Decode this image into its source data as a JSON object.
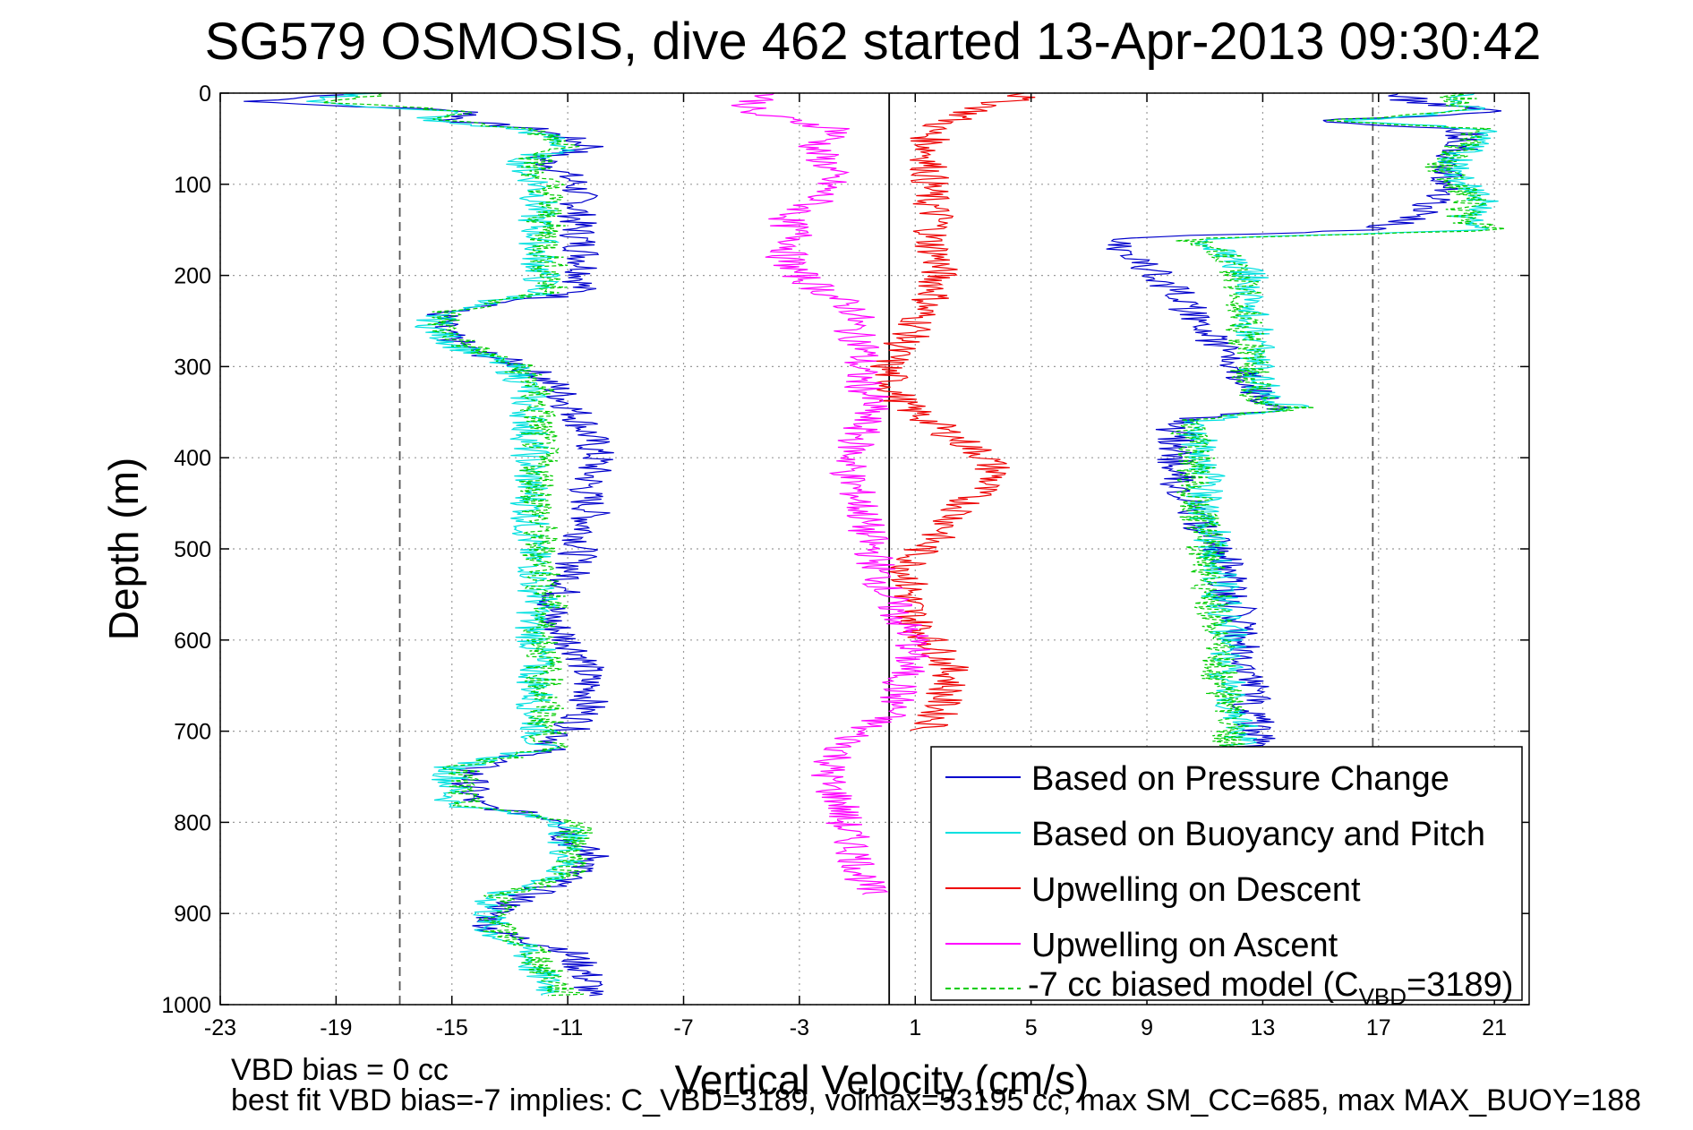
{
  "chart_data": {
    "type": "line",
    "title": "SG579 OSMOSIS, dive 462 started 13-Apr-2013 09:30:42",
    "xlabel": "Vertical Velocity (cm/s)",
    "ylabel": "Depth (m)",
    "xlim": [
      -23,
      22.2
    ],
    "ylim": [
      0,
      1000
    ],
    "y_reversed": true,
    "grid": true,
    "xticks": [
      -23,
      -19,
      -15,
      -11,
      -7,
      -3,
      1,
      5,
      9,
      13,
      17,
      21
    ],
    "xtick_labels": [
      "-23",
      "-19",
      "-15",
      "-11",
      "-7",
      "-3",
      "1",
      "5",
      "9",
      "13",
      "17",
      "21"
    ],
    "yticks": [
      0,
      100,
      200,
      300,
      400,
      500,
      600,
      700,
      800,
      900,
      1000
    ],
    "ytick_labels": [
      "0",
      "100",
      "200",
      "300",
      "400",
      "500",
      "600",
      "700",
      "800",
      "900",
      "1000"
    ],
    "reference_lines": [
      {
        "x": -16.8,
        "style": "dashed",
        "color": "#555555"
      },
      {
        "x": 16.8,
        "style": "dashed",
        "color": "#555555"
      },
      {
        "x": 0.1,
        "style": "solid",
        "color": "#000000"
      }
    ],
    "legend_position": "lower-right",
    "series": [
      {
        "name": "Based on Pressure Change",
        "color": "#0000cc",
        "style": "solid",
        "depth": [
          0,
          10,
          20,
          30,
          40,
          50,
          60,
          70,
          80,
          100,
          120,
          140,
          160,
          180,
          200,
          220,
          240,
          260,
          280,
          300,
          320,
          340,
          360,
          380,
          400,
          420,
          440,
          460,
          480,
          500,
          520,
          540,
          560,
          580,
          600,
          620,
          640,
          660,
          680,
          700,
          720,
          740,
          760,
          780,
          800,
          820,
          840,
          860,
          880,
          900,
          920,
          940,
          960,
          980,
          990
        ],
        "velocity": [
          -18,
          -22,
          -14,
          -15,
          -12,
          -11,
          -10,
          -12,
          -11.5,
          -10.7,
          -10.6,
          -10.7,
          -10.6,
          -10.4,
          -10.4,
          -10.7,
          -15.3,
          -15.5,
          -14.5,
          -12.5,
          -11.5,
          -11,
          -10.5,
          -10.2,
          -10,
          -10.2,
          -10.4,
          -10.2,
          -10.4,
          -10.6,
          -10.8,
          -11,
          -11.5,
          -11.6,
          -11,
          -10.4,
          -10.4,
          -10.2,
          -10.4,
          -11,
          -11.7,
          -14.3,
          -14.4,
          -14.3,
          -10.8,
          -11,
          -10,
          -11,
          -12.4,
          -13.6,
          -13.6,
          -11,
          -10.5,
          -10.2,
          -10.5
        ]
      },
      {
        "name": "Based on Buoyancy and Pitch",
        "color": "#00e0e0",
        "style": "solid",
        "depth": [
          0,
          10,
          20,
          30,
          40,
          50,
          60,
          70,
          80,
          100,
          120,
          140,
          160,
          180,
          200,
          220,
          240,
          260,
          280,
          300,
          320,
          340,
          360,
          380,
          400,
          420,
          440,
          460,
          480,
          500,
          520,
          540,
          560,
          580,
          600,
          620,
          640,
          660,
          680,
          700,
          720,
          740,
          760,
          780,
          800,
          820,
          840,
          860,
          880,
          900,
          920,
          940,
          960,
          980,
          990
        ],
        "velocity": [
          -18,
          -20,
          -15,
          -16,
          -12.5,
          -11.5,
          -11,
          -12.3,
          -12.5,
          -12,
          -12,
          -12.1,
          -12,
          -12,
          -11.9,
          -12,
          -15.5,
          -15.6,
          -14.6,
          -13,
          -12.4,
          -12.4,
          -12.3,
          -12.3,
          -12.3,
          -12.3,
          -12.3,
          -12.3,
          -12.3,
          -12.3,
          -12.1,
          -12.1,
          -11.9,
          -12.3,
          -12.1,
          -12.1,
          -12.1,
          -12.1,
          -12.1,
          -12,
          -12,
          -15,
          -15,
          -15,
          -11,
          -11,
          -11,
          -11.3,
          -13.6,
          -13.7,
          -13.7,
          -12.4,
          -12.2,
          -11.6,
          -11.4
        ]
      },
      {
        "name": "Upwelling on Descent",
        "color": "#ee0000",
        "style": "solid",
        "depth": [
          0,
          20,
          40,
          60,
          80,
          100,
          120,
          140,
          160,
          180,
          200,
          220,
          240,
          260,
          280,
          300,
          320,
          340,
          360,
          380,
          400,
          420,
          440,
          460,
          480,
          500,
          520,
          540,
          560,
          580,
          600,
          620,
          640,
          660,
          680,
          700
        ],
        "velocity": [
          5,
          3,
          1.5,
          1.5,
          1.5,
          1.5,
          1.5,
          1.8,
          1.5,
          1.8,
          1.8,
          1.7,
          1.2,
          1,
          0.4,
          0,
          0.2,
          0.5,
          1.5,
          2.5,
          3.5,
          3.8,
          3,
          2.5,
          2,
          1.2,
          0.8,
          0.8,
          0.8,
          1,
          1.5,
          2,
          2.3,
          2,
          1.8,
          1.5
        ]
      },
      {
        "name": "Upwelling on Ascent",
        "color": "#ff00ff",
        "style": "solid",
        "depth": [
          0,
          20,
          40,
          60,
          80,
          100,
          120,
          140,
          160,
          180,
          200,
          220,
          240,
          260,
          280,
          300,
          320,
          340,
          360,
          380,
          400,
          420,
          440,
          460,
          480,
          500,
          520,
          540,
          560,
          580,
          600,
          620,
          640,
          660,
          680,
          700,
          720,
          740,
          760,
          780,
          800,
          820,
          840,
          860,
          880
        ],
        "velocity": [
          -4,
          -5,
          -1.5,
          -2.5,
          -2,
          -2,
          -2.5,
          -3.5,
          -3,
          -3.5,
          -3,
          -2,
          -1,
          -1.2,
          -0.7,
          -1,
          -0.8,
          -0.5,
          -0.8,
          -1,
          -1.2,
          -1.3,
          -1,
          -0.8,
          -0.7,
          -0.5,
          -0.3,
          -0.1,
          0.2,
          0.5,
          1,
          0.8,
          0.6,
          0.4,
          0.2,
          -1,
          -1.5,
          -2,
          -2,
          -1.5,
          -1.5,
          -1.2,
          -1,
          -0.8,
          -0.6
        ]
      },
      {
        "name": "-7 cc biased model (C_VBD=3189)",
        "color": "#00cc00",
        "style": "dashed",
        "depth": [
          0,
          10,
          20,
          30,
          40,
          50,
          60,
          70,
          80,
          100,
          120,
          140,
          160,
          180,
          200,
          220,
          240,
          260,
          280,
          300,
          320,
          340,
          360,
          380,
          400,
          420,
          440,
          460,
          480,
          500,
          520,
          540,
          560,
          580,
          600,
          620,
          640,
          660,
          680,
          700,
          720,
          740,
          760,
          780,
          800,
          820,
          840,
          860,
          880,
          900,
          920,
          940,
          960,
          980,
          990
        ],
        "velocity": [
          -17,
          -19,
          -14.5,
          -15.5,
          -12.3,
          -11.3,
          -10.8,
          -12,
          -12.2,
          -11.7,
          -11.7,
          -11.8,
          -11.7,
          -11.7,
          -11.6,
          -11.7,
          -15.2,
          -15.3,
          -14.3,
          -12.7,
          -12.1,
          -12.1,
          -12,
          -12,
          -12,
          -12,
          -12,
          -12,
          -12,
          -12,
          -11.8,
          -11.8,
          -11.6,
          -12,
          -11.8,
          -11.8,
          -11.8,
          -11.8,
          -11.8,
          -11.7,
          -11.7,
          -14.7,
          -14.7,
          -14.7,
          -10.7,
          -10.7,
          -10.7,
          -11,
          -13.3,
          -13.4,
          -13.4,
          -12.1,
          -11.9,
          -11.3,
          -11.1
        ]
      }
    ],
    "ascent_series": [
      {
        "color": "#0000cc",
        "style": "solid",
        "depth": [
          990,
          980,
          960,
          940,
          920,
          900,
          880,
          860,
          840,
          820,
          800,
          780,
          760,
          740,
          720,
          700,
          680,
          660,
          640,
          620,
          600,
          580,
          560,
          540,
          520,
          500,
          480,
          460,
          440,
          420,
          400,
          380,
          360,
          345,
          340,
          320,
          300,
          280,
          260,
          240,
          220,
          200,
          180,
          160,
          150,
          140,
          120,
          100,
          80,
          60,
          40,
          30,
          20,
          10,
          0
        ],
        "velocity": [
          12,
          13,
          12,
          12.5,
          12.5,
          12.5,
          12.5,
          12.6,
          12.7,
          12.6,
          12.6,
          12.6,
          12.7,
          12.7,
          12.8,
          12.8,
          12.6,
          12.7,
          12.6,
          12.4,
          12.3,
          12.3,
          12.0,
          11.8,
          11.7,
          11.5,
          11.0,
          10.5,
          10.3,
          10.0,
          10.0,
          10.0,
          10.0,
          14.0,
          13.0,
          12.5,
          12.0,
          11.5,
          11.0,
          10.5,
          10.0,
          9.5,
          8.5,
          7.5,
          16.5,
          18,
          19,
          19.5,
          19,
          20,
          20,
          15,
          22,
          18,
          18
        ]
      },
      {
        "color": "#00e0e0",
        "style": "solid",
        "depth": [
          990,
          980,
          960,
          940,
          920,
          900,
          880,
          860,
          840,
          820,
          800,
          780,
          760,
          740,
          720,
          700,
          680,
          660,
          640,
          620,
          600,
          580,
          560,
          540,
          520,
          500,
          480,
          460,
          440,
          420,
          400,
          380,
          360,
          345,
          340,
          320,
          300,
          280,
          260,
          240,
          220,
          200,
          180,
          160,
          150,
          140,
          120,
          100,
          80,
          60,
          40,
          30,
          20,
          10,
          0
        ],
        "velocity": [
          12,
          12.5,
          12.3,
          12.3,
          12.2,
          12.2,
          12.2,
          12.2,
          12.2,
          12.2,
          12.2,
          12.2,
          12.2,
          12.2,
          12.2,
          12.2,
          12.0,
          12.0,
          11.8,
          11.8,
          11.8,
          11.8,
          11.6,
          11.5,
          11.4,
          11.3,
          11.2,
          11.1,
          11.0,
          11.0,
          11.0,
          10.8,
          10.8,
          14.5,
          13.2,
          13.0,
          12.8,
          12.8,
          12.7,
          12.6,
          12.6,
          12.5,
          12.0,
          10.8,
          21,
          20,
          20.5,
          20,
          19.5,
          20,
          21,
          16,
          20,
          20,
          20
        ]
      },
      {
        "color": "#00cc00",
        "style": "dashed",
        "depth": [
          990,
          980,
          960,
          940,
          920,
          900,
          880,
          860,
          840,
          820,
          800,
          780,
          760,
          740,
          720,
          700,
          680,
          660,
          640,
          620,
          600,
          580,
          560,
          540,
          520,
          500,
          480,
          460,
          440,
          420,
          400,
          380,
          360,
          345,
          340,
          320,
          300,
          280,
          260,
          240,
          220,
          200,
          180,
          160,
          150,
          140,
          120,
          100,
          80,
          60,
          40,
          30,
          20,
          10,
          0
        ],
        "velocity": [
          11.8,
          12.2,
          12.0,
          12.0,
          11.9,
          11.9,
          11.9,
          11.9,
          11.9,
          11.9,
          11.9,
          11.9,
          11.9,
          11.9,
          11.9,
          11.9,
          11.7,
          11.7,
          11.5,
          11.5,
          11.5,
          11.5,
          11.3,
          11.2,
          11.1,
          11.0,
          10.9,
          10.8,
          10.7,
          10.7,
          10.7,
          10.5,
          10.5,
          14.2,
          12.9,
          12.7,
          12.5,
          12.5,
          12.4,
          12.3,
          12.3,
          12.2,
          11.7,
          10.5,
          21.5,
          19.7,
          20.2,
          19.7,
          19.2,
          19.7,
          20.7,
          15.7,
          19.7,
          19.7,
          19.7
        ]
      }
    ],
    "legend": [
      {
        "label": "Based on Pressure Change",
        "color": "#0000cc",
        "style": "solid"
      },
      {
        "label": "Based on Buoyancy and Pitch",
        "color": "#00e0e0",
        "style": "solid"
      },
      {
        "label": "Upwelling on Descent",
        "color": "#ee0000",
        "style": "solid"
      },
      {
        "label": "Upwelling on Ascent",
        "color": "#ff00ff",
        "style": "solid"
      },
      {
        "label_main": "-7 cc biased model (C",
        "label_sub": "VBD",
        "label_end": "=3189)",
        "color": "#00cc00",
        "style": "dashed"
      }
    ],
    "annotations": {
      "line1": "VBD bias = 0 cc",
      "line2": "best fit VBD bias=-7 implies: C_VBD=3189, volmax=53195 cc, max SM_CC=685, max MAX_BUOY=188"
    }
  }
}
